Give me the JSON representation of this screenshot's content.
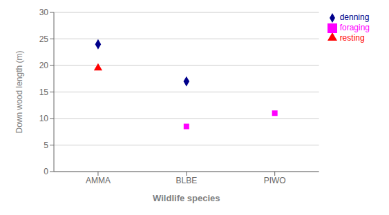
{
  "chart_data": {
    "type": "scatter",
    "categories": [
      "AMMA",
      "BLBE",
      "PIWO"
    ],
    "series": [
      {
        "name": "denning",
        "color": "#00008B",
        "marker": "diamond",
        "values": [
          24,
          17,
          null
        ]
      },
      {
        "name": "foraging",
        "color": "#FF00FF",
        "marker": "square",
        "values": [
          null,
          8.5,
          11
        ]
      },
      {
        "name": "resting",
        "color": "#FF0000",
        "marker": "triangle",
        "values": [
          19.5,
          null,
          null
        ]
      }
    ],
    "xlabel": "Wildlife species",
    "ylabel": "Down wood length (m)",
    "ylim": [
      0,
      30
    ],
    "yticks": [
      0,
      5,
      10,
      15,
      20,
      25,
      30
    ],
    "grid": true,
    "legend": "right"
  }
}
